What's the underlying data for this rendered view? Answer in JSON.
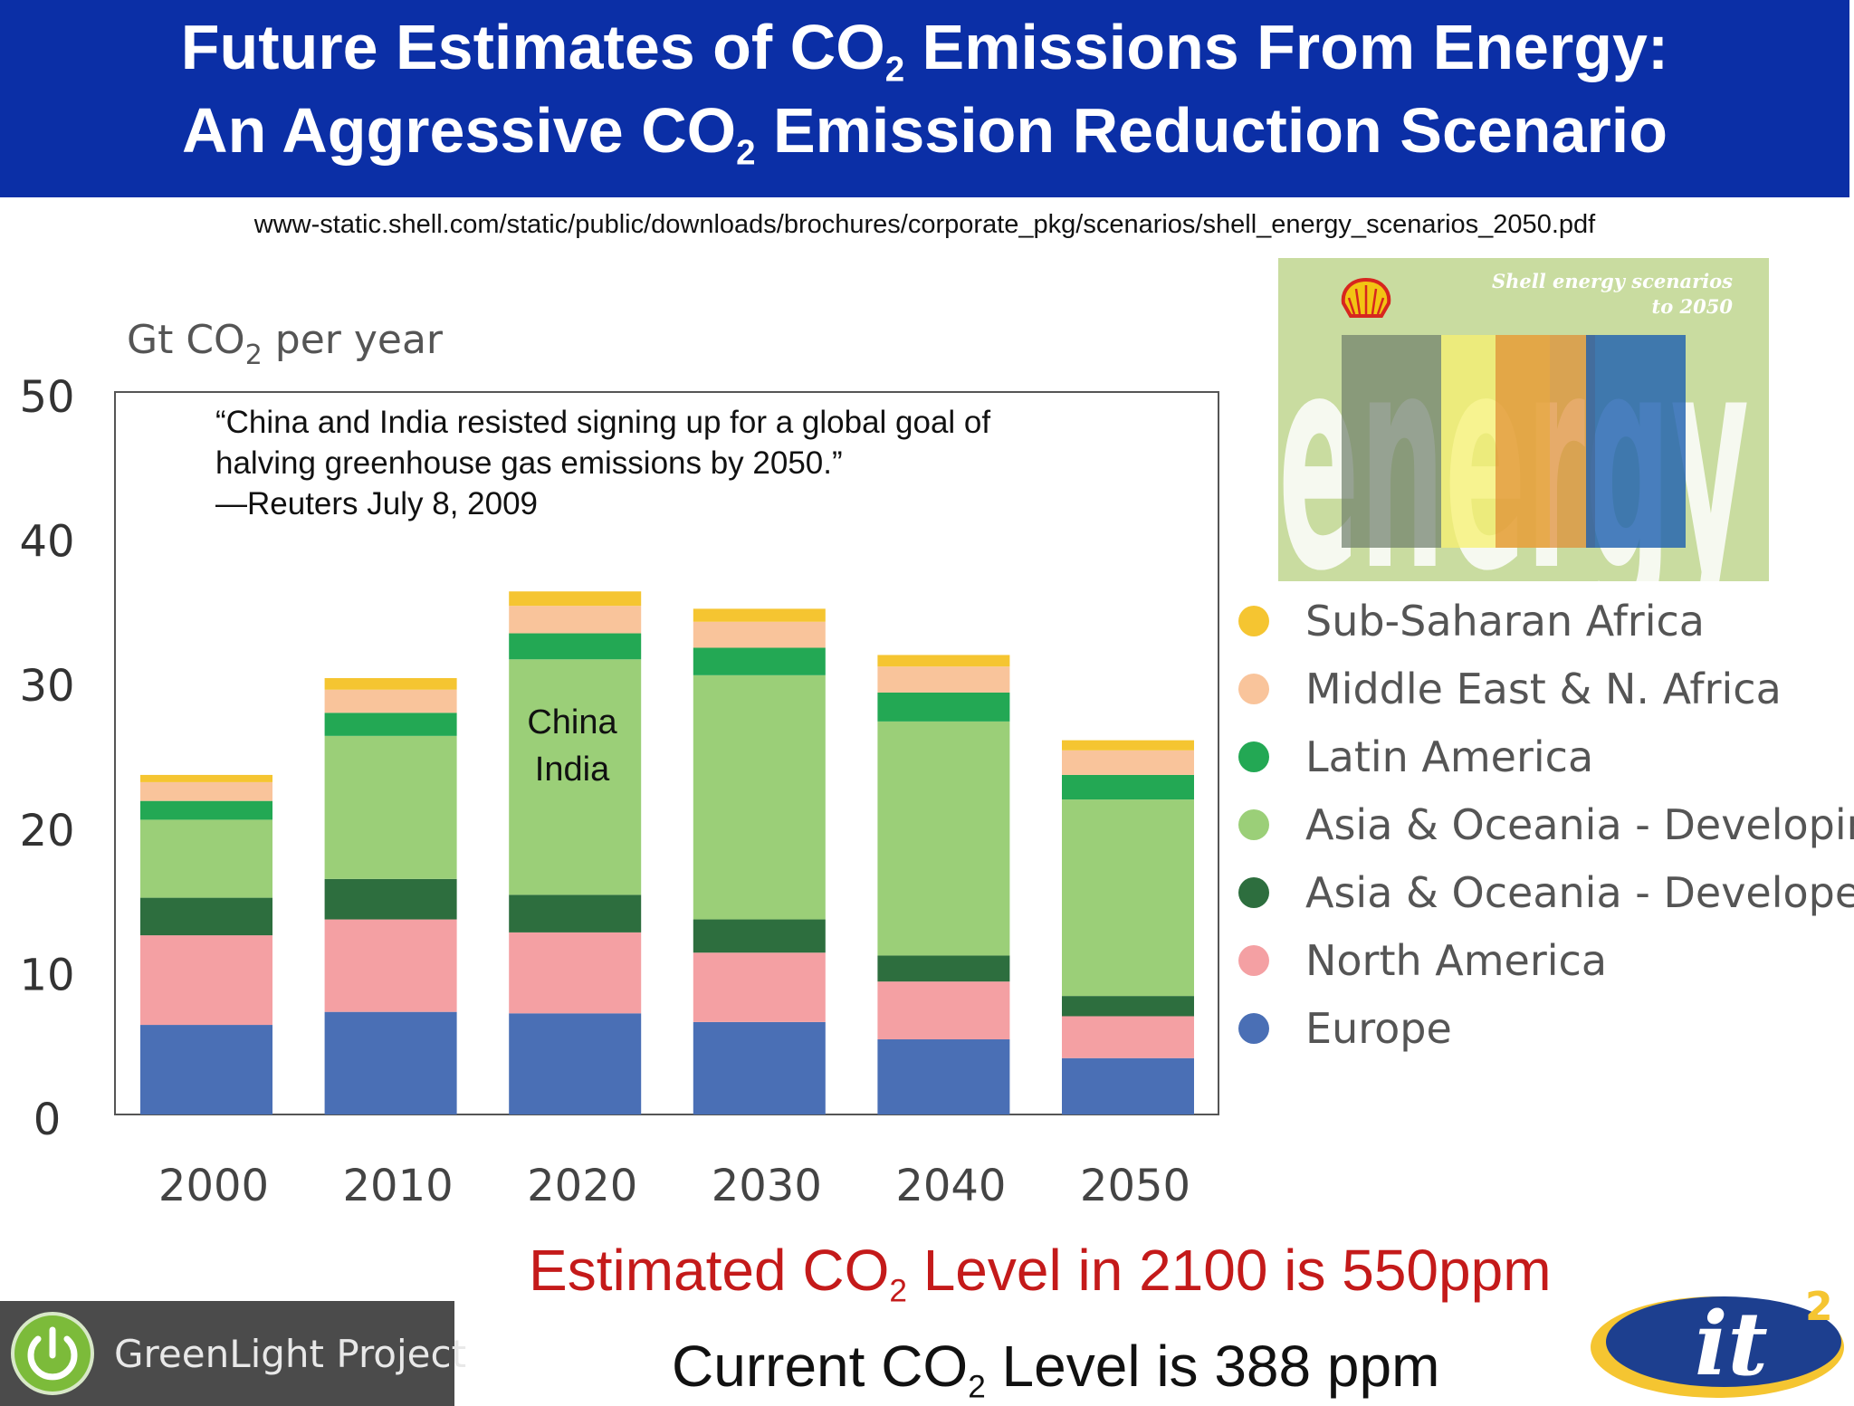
{
  "header": {
    "title_line1_pre": "Future Estimates of CO",
    "title_line1_sub": "2",
    "title_line1_post": " Emissions From Energy:",
    "title_line2_pre": "An Aggressive CO",
    "title_line2_sub": "2",
    "title_line2_post": " Emission Reduction Scenario",
    "bg_color": "#0b2fa6"
  },
  "source_url": "www-static.shell.com/static/public/downloads/brochures/corporate_pkg/scenarios/shell_energy_scenarios_2050.pdf",
  "chart_data": {
    "type": "bar",
    "stacked": true,
    "ylabel_pre": "Gt CO",
    "ylabel_sub": "2",
    "ylabel_post": " per year",
    "ylim": [
      0,
      50
    ],
    "yticks": [
      "0",
      "10",
      "20",
      "30",
      "40",
      "50"
    ],
    "categories": [
      "2000",
      "2010",
      "2020",
      "2030",
      "2040",
      "2050"
    ],
    "series": [
      {
        "name": "Europe",
        "color": "#4a6fb5",
        "values": [
          6.2,
          7.1,
          7.0,
          6.4,
          5.2,
          3.9
        ]
      },
      {
        "name": "North America",
        "color": "#f4a0a3",
        "values": [
          6.2,
          6.4,
          5.6,
          4.8,
          4.0,
          2.9
        ]
      },
      {
        "name": "Asia & Oceania - Developed",
        "color": "#2d6e3e",
        "values": [
          2.6,
          2.8,
          2.6,
          2.3,
          1.8,
          1.4
        ]
      },
      {
        "name": "Asia & Oceania - Developing",
        "color": "#9bcf78",
        "values": [
          5.4,
          9.9,
          16.3,
          16.9,
          16.2,
          13.6
        ]
      },
      {
        "name": "Latin America",
        "color": "#23a854",
        "values": [
          1.3,
          1.6,
          1.8,
          1.9,
          2.0,
          1.7
        ]
      },
      {
        "name": "Middle East & N. Africa",
        "color": "#f9c49b",
        "values": [
          1.3,
          1.6,
          1.9,
          1.8,
          1.8,
          1.7
        ]
      },
      {
        "name": "Sub-Saharan Africa",
        "color": "#f5c531",
        "values": [
          0.5,
          0.8,
          1.0,
          0.9,
          0.8,
          0.7
        ]
      }
    ],
    "annotation": [
      "China",
      "India"
    ],
    "legend_position": "right",
    "grid": false
  },
  "quote": {
    "line1": "“China and India resisted signing up for a global goal of",
    "line2": "halving greenhouse gas emissions by 2050.”",
    "line3": "—Reuters July 8, 2009"
  },
  "cover": {
    "title1": "Shell energy scenarios",
    "title2": "to 2050",
    "word": "energy",
    "bg_color": "#c9dca0"
  },
  "bottom": {
    "estimate_pre": "Estimated CO",
    "estimate_sub": "2",
    "estimate_post": " Level in  2100 is 550ppm",
    "estimate_color": "#c41a1a",
    "current_pre": "Current CO",
    "current_sub": "2",
    "current_post": " Level is 388 ppm"
  },
  "greenlight": {
    "label": "GreenLight Project"
  },
  "it2_logo": {
    "text": "it",
    "sup": "2"
  }
}
